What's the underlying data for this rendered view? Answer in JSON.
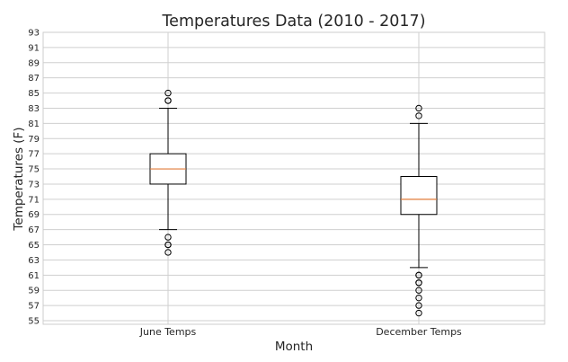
{
  "chart_data": {
    "type": "box",
    "title": "Temperatures Data (2010 - 2017)",
    "xlabel": "Month",
    "ylabel": "Temperatures (F)",
    "ylim": [
      55,
      93
    ],
    "yticks": [
      55,
      57,
      59,
      61,
      63,
      65,
      67,
      69,
      71,
      73,
      75,
      77,
      79,
      81,
      83,
      85,
      87,
      89,
      91,
      93
    ],
    "grid": true,
    "categories": [
      "June Temps",
      "December Temps"
    ],
    "boxes": [
      {
        "name": "June Temps",
        "whisker_low": 67,
        "q1": 73,
        "median": 75,
        "q3": 77,
        "whisker_high": 83,
        "outliers": [
          64,
          65,
          65,
          66,
          84,
          84,
          85
        ]
      },
      {
        "name": "December Temps",
        "whisker_low": 62,
        "q1": 69,
        "median": 71,
        "q3": 74,
        "whisker_high": 81,
        "outliers": [
          56,
          57,
          58,
          59,
          60,
          60,
          61,
          61,
          82,
          83
        ]
      }
    ],
    "colors": {
      "box": "#000000",
      "median": "#e07b39",
      "grid": "#cfcfcf",
      "axes_edge": "#cccccc"
    }
  }
}
